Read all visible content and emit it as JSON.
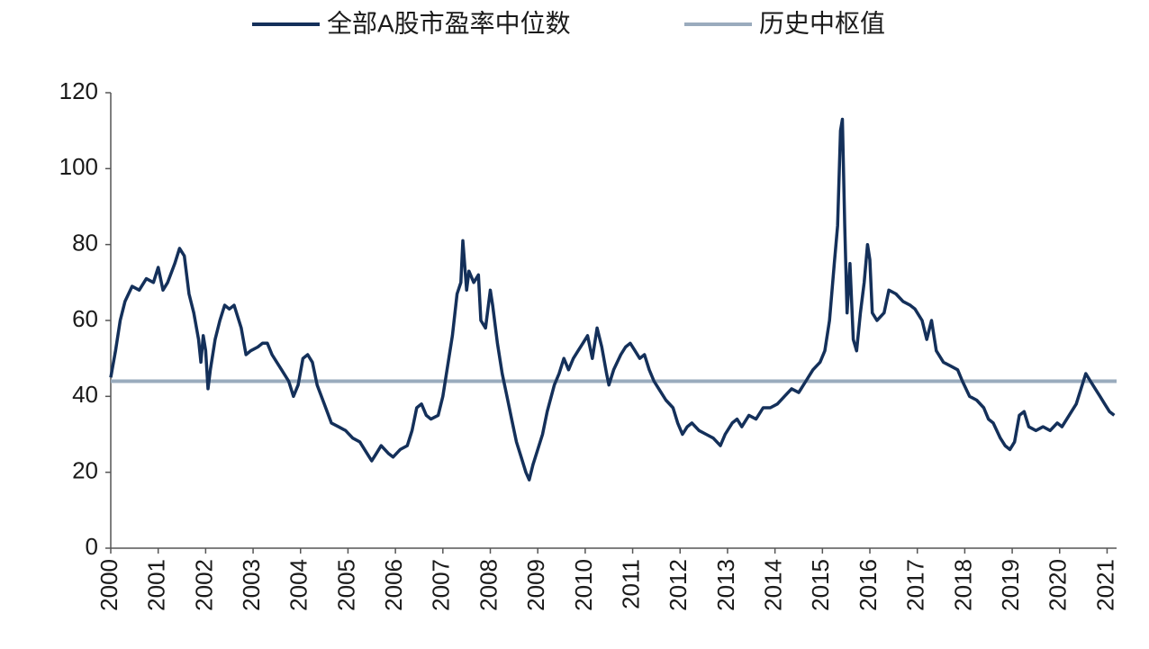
{
  "chart_data": {
    "type": "line",
    "xlim": [
      2000,
      2021.2
    ],
    "xticks": [
      2000,
      2001,
      2002,
      2003,
      2004,
      2005,
      2006,
      2007,
      2008,
      2009,
      2010,
      2011,
      2012,
      2013,
      2014,
      2015,
      2016,
      2017,
      2018,
      2019,
      2020,
      2021
    ],
    "ylim": [
      0,
      120
    ],
    "yticks": [
      0,
      20,
      40,
      60,
      80,
      100,
      120
    ],
    "grid": false,
    "legend": "top",
    "series": [
      {
        "name": "全部A股市盈率中位数",
        "color": "#14305a",
        "x": [
          2000.0,
          2000.1,
          2000.2,
          2000.3,
          2000.45,
          2000.6,
          2000.75,
          2000.9,
          2001.0,
          2001.1,
          2001.2,
          2001.35,
          2001.45,
          2001.55,
          2001.65,
          2001.75,
          2001.85,
          2001.9,
          2001.95,
          2002.0,
          2002.05,
          2002.1,
          2002.2,
          2002.3,
          2002.4,
          2002.5,
          2002.6,
          2002.75,
          2002.85,
          2002.95,
          2003.1,
          2003.2,
          2003.3,
          2003.4,
          2003.5,
          2003.6,
          2003.75,
          2003.85,
          2003.95,
          2004.05,
          2004.15,
          2004.25,
          2004.35,
          2004.5,
          2004.65,
          2004.8,
          2004.95,
          2005.1,
          2005.25,
          2005.4,
          2005.5,
          2005.6,
          2005.7,
          2005.85,
          2005.95,
          2006.1,
          2006.25,
          2006.35,
          2006.45,
          2006.55,
          2006.65,
          2006.75,
          2006.9,
          2007.0,
          2007.1,
          2007.2,
          2007.3,
          2007.38,
          2007.42,
          2007.5,
          2007.55,
          2007.65,
          2007.75,
          2007.8,
          2007.9,
          2008.0,
          2008.05,
          2008.15,
          2008.25,
          2008.35,
          2008.45,
          2008.55,
          2008.65,
          2008.75,
          2008.82,
          2008.9,
          2009.0,
          2009.1,
          2009.2,
          2009.35,
          2009.45,
          2009.55,
          2009.65,
          2009.75,
          2009.85,
          2009.95,
          2010.05,
          2010.15,
          2010.25,
          2010.35,
          2010.45,
          2010.5,
          2010.6,
          2010.75,
          2010.85,
          2010.95,
          2011.05,
          2011.15,
          2011.25,
          2011.35,
          2011.45,
          2011.55,
          2011.7,
          2011.85,
          2011.95,
          2012.05,
          2012.15,
          2012.25,
          2012.4,
          2012.55,
          2012.7,
          2012.85,
          2012.95,
          2013.1,
          2013.2,
          2013.3,
          2013.45,
          2013.6,
          2013.75,
          2013.9,
          2014.05,
          2014.2,
          2014.35,
          2014.5,
          2014.65,
          2014.8,
          2014.95,
          2015.05,
          2015.15,
          2015.25,
          2015.32,
          2015.38,
          2015.42,
          2015.47,
          2015.52,
          2015.58,
          2015.65,
          2015.72,
          2015.8,
          2015.88,
          2015.95,
          2016.0,
          2016.05,
          2016.15,
          2016.3,
          2016.4,
          2016.55,
          2016.7,
          2016.85,
          2016.95,
          2017.1,
          2017.2,
          2017.3,
          2017.4,
          2017.55,
          2017.7,
          2017.85,
          2017.95,
          2018.1,
          2018.25,
          2018.4,
          2018.5,
          2018.6,
          2018.75,
          2018.85,
          2018.95,
          2019.05,
          2019.15,
          2019.25,
          2019.35,
          2019.5,
          2019.65,
          2019.8,
          2019.95,
          2020.05,
          2020.2,
          2020.35,
          2020.45,
          2020.55,
          2020.65,
          2020.75,
          2020.85,
          2020.95,
          2021.05,
          2021.15
        ],
        "values": [
          45,
          52,
          60,
          65,
          69,
          68,
          71,
          70,
          74,
          68,
          70,
          75,
          79,
          77,
          67,
          62,
          55,
          49,
          56,
          52,
          42,
          47,
          55,
          60,
          64,
          63,
          64,
          58,
          51,
          52,
          53,
          54,
          54,
          51,
          49,
          47,
          44,
          40,
          43,
          50,
          51,
          49,
          43,
          38,
          33,
          32,
          31,
          29,
          28,
          25,
          23,
          25,
          27,
          25,
          24,
          26,
          27,
          31,
          37,
          38,
          35,
          34,
          35,
          40,
          48,
          56,
          67,
          70,
          81,
          68,
          73,
          70,
          72,
          60,
          58,
          68,
          64,
          54,
          46,
          40,
          34,
          28,
          24,
          20,
          18,
          22,
          26,
          30,
          36,
          43,
          46,
          50,
          47,
          50,
          52,
          54,
          56,
          50,
          58,
          53,
          46,
          43,
          47,
          51,
          53,
          54,
          52,
          50,
          51,
          47,
          44,
          42,
          39,
          37,
          33,
          30,
          32,
          33,
          31,
          30,
          29,
          27,
          30,
          33,
          34,
          32,
          35,
          34,
          37,
          37,
          38,
          40,
          42,
          41,
          44,
          47,
          49,
          52,
          60,
          75,
          85,
          110,
          113,
          85,
          62,
          75,
          55,
          52,
          62,
          70,
          80,
          76,
          62,
          60,
          62,
          68,
          67,
          65,
          64,
          63,
          60,
          55,
          60,
          52,
          49,
          48,
          47,
          44,
          40,
          39,
          37,
          34,
          33,
          29,
          27,
          26,
          28,
          35,
          36,
          32,
          31,
          32,
          31,
          33,
          32,
          35,
          38,
          42,
          46,
          44,
          42,
          40,
          38,
          36,
          35
        ]
      },
      {
        "name": "历史中枢值",
        "color": "#9aabbd",
        "x": [
          2000,
          2021.2
        ],
        "values": [
          44,
          44
        ]
      }
    ]
  }
}
